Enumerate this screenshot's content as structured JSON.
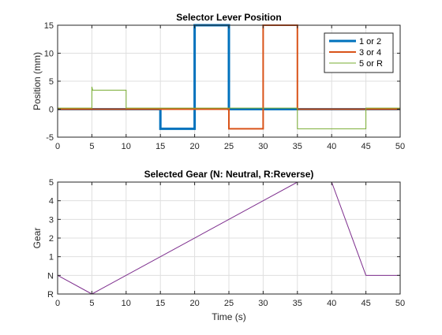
{
  "chart_data": [
    {
      "type": "line",
      "title": "Selector Lever Position",
      "xlabel": "",
      "ylabel": "Position (mm)",
      "xlim": [
        0,
        50
      ],
      "ylim": [
        -5,
        15
      ],
      "xticks": [
        0,
        5,
        10,
        15,
        20,
        25,
        30,
        35,
        40,
        45,
        50
      ],
      "yticks": [
        -5,
        0,
        5,
        10,
        15
      ],
      "grid": true,
      "legend": "top-right",
      "series": [
        {
          "name": "1 or 2",
          "color": "#0072BD",
          "linewidth": 3,
          "x": [
            0,
            15,
            15,
            20,
            20,
            25,
            25,
            50
          ],
          "y": [
            0,
            0,
            -3.5,
            -3.5,
            15,
            15,
            0,
            0
          ]
        },
        {
          "name": "3 or 4",
          "color": "#D95319",
          "linewidth": 2,
          "x": [
            0,
            25,
            25,
            30,
            30,
            35,
            35,
            50
          ],
          "y": [
            0,
            0,
            -3.5,
            -3.5,
            15,
            15,
            0,
            0
          ]
        },
        {
          "name": "5 or R",
          "color": "#77AC30",
          "linewidth": 1,
          "x": [
            0,
            5,
            5,
            5.1,
            10,
            10,
            35,
            35,
            45,
            45,
            50
          ],
          "y": [
            0.2,
            0.2,
            4,
            3.4,
            3.4,
            0.2,
            0.2,
            -3.5,
            -3.5,
            0.2,
            0.2
          ]
        }
      ]
    },
    {
      "type": "line",
      "title": "Selected Gear (N: Neutral, R:Reverse)",
      "xlabel": "Time (s)",
      "ylabel": "Gear",
      "xlim": [
        0,
        50
      ],
      "ylim": [
        -1,
        5
      ],
      "xticks": [
        0,
        5,
        10,
        15,
        20,
        25,
        30,
        35,
        40,
        45,
        50
      ],
      "yticks": [
        -1,
        0,
        1,
        2,
        3,
        4,
        5
      ],
      "yticklabels": [
        "R",
        "N",
        "1",
        "2",
        "3",
        "4",
        "5"
      ],
      "grid": true,
      "series": [
        {
          "color": "#7E2F8E",
          "linewidth": 1,
          "x": [
            0,
            5,
            35,
            40,
            45,
            50
          ],
          "y": [
            0,
            -1,
            5,
            5,
            0,
            0
          ]
        }
      ]
    }
  ]
}
